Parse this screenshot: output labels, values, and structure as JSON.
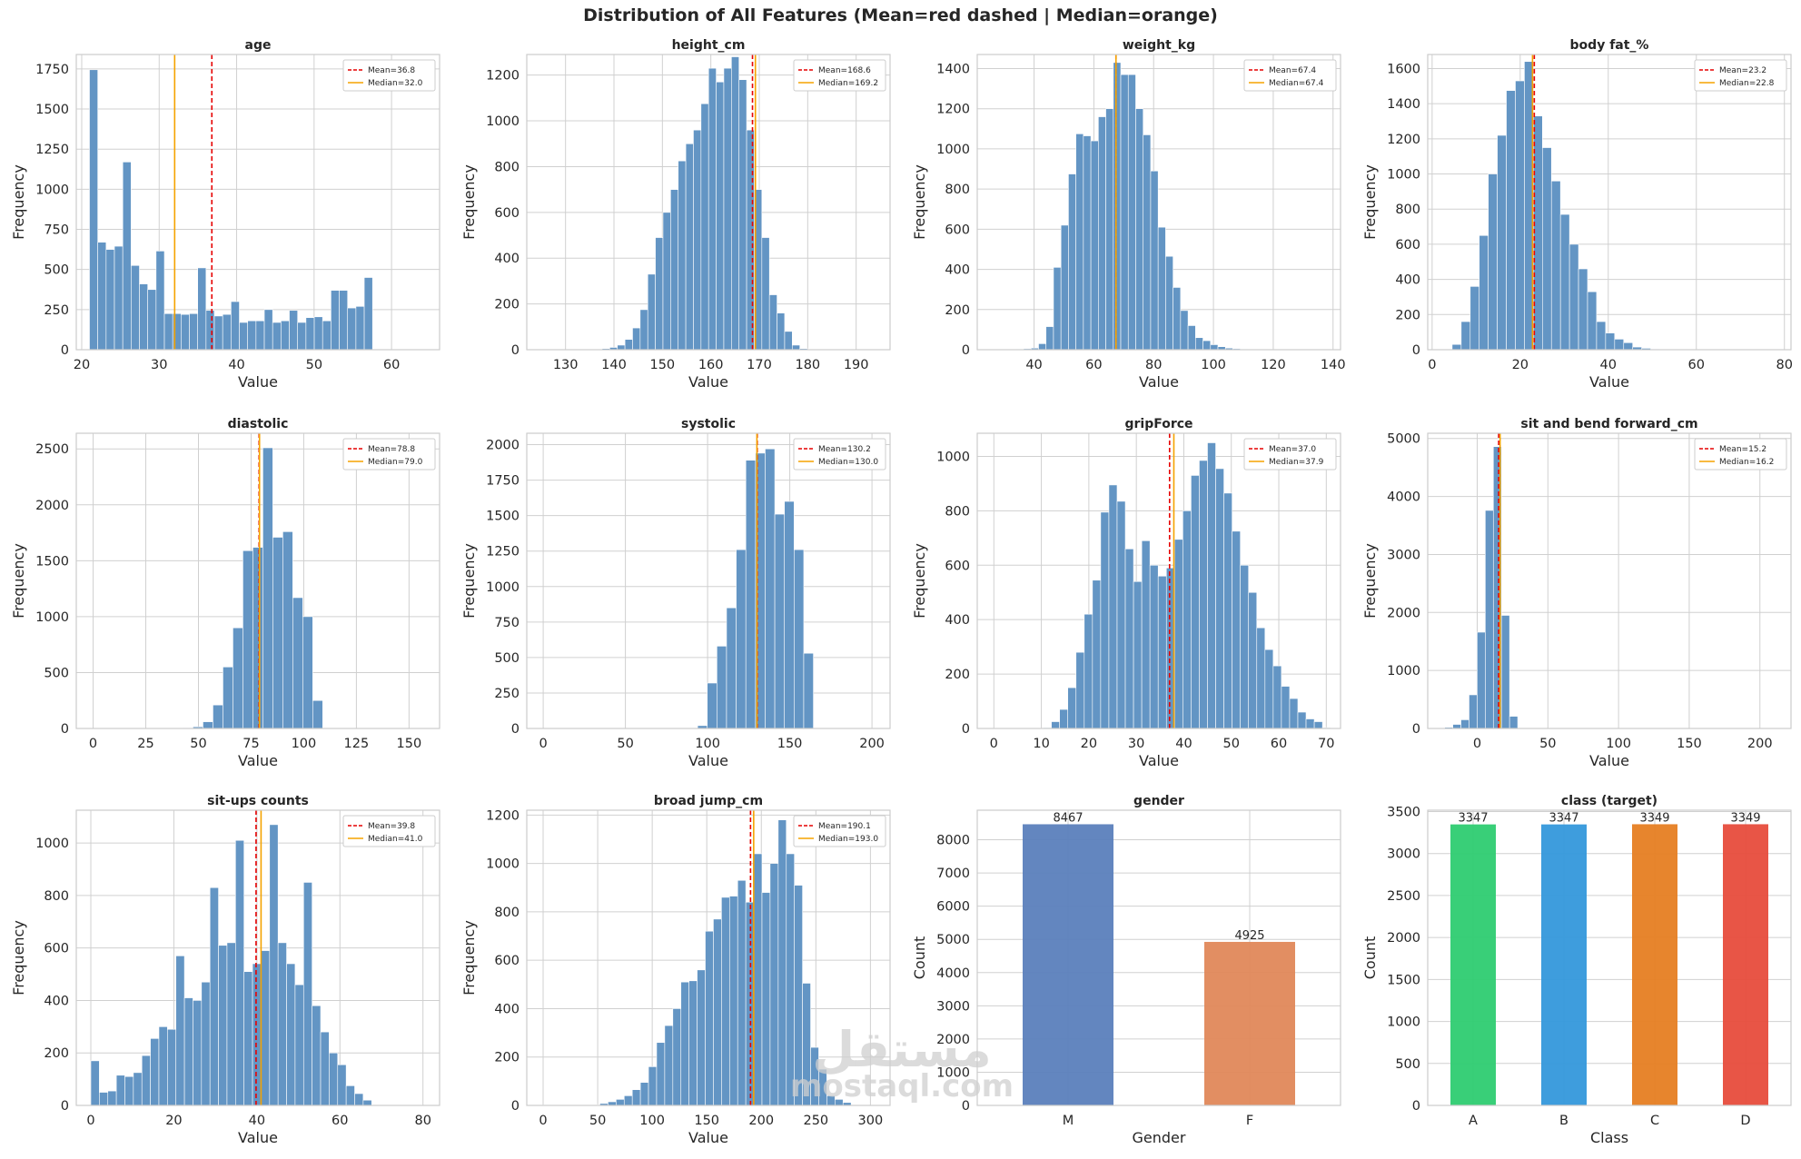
{
  "figure": {
    "title": "Distribution of All Features (Mean=red dashed | Median=orange)",
    "watermark": {
      "arabic": "مستقل",
      "latin": "mostaql.com"
    },
    "colors": {
      "hist_bar": "#6395c4",
      "hist_edge": "#ffffff",
      "mean_line": "#e60000",
      "median_line": "#f5a300",
      "grid": "#d0d0d0",
      "spine": "#cccccc",
      "gender_M": "#5b7fbc",
      "gender_F": "#e0885a",
      "class_A": "#2ecc71",
      "class_B": "#3498db",
      "class_C": "#e67e22",
      "class_D": "#e74c3c"
    }
  },
  "chart_data": [
    {
      "type": "bar",
      "title": "age",
      "xlabel": "Value",
      "ylabel": "Frequency",
      "xlim": [
        19.3,
        66.2
      ],
      "ylim": [
        0,
        1840
      ],
      "xticks": [
        20,
        30,
        40,
        50,
        60
      ],
      "yticks": [
        0,
        250,
        500,
        750,
        1000,
        1250,
        1500,
        1750
      ],
      "bin_start": 21,
      "bin_width": 1.075,
      "values": [
        1745,
        670,
        625,
        645,
        1170,
        525,
        410,
        375,
        615,
        225,
        225,
        220,
        225,
        510,
        245,
        210,
        220,
        300,
        170,
        180,
        180,
        250,
        170,
        180,
        245,
        170,
        200,
        205,
        180,
        370,
        370,
        260,
        270,
        450
      ],
      "mean": 36.8,
      "median": 32.0,
      "mean_label": "Mean=36.8",
      "median_label": "Median=32.0"
    },
    {
      "type": "bar",
      "title": "height_cm",
      "xlabel": "Value",
      "ylabel": "Frequency",
      "xlim": [
        122,
        197
      ],
      "ylim": [
        0,
        1290
      ],
      "xticks": [
        130,
        140,
        150,
        160,
        170,
        180,
        190
      ],
      "yticks": [
        0,
        200,
        400,
        600,
        800,
        1000,
        1200
      ],
      "bin_start": 125,
      "bin_width": 1.57,
      "values": [
        1,
        1,
        1,
        1,
        1,
        2,
        2,
        3,
        5,
        10,
        20,
        45,
        95,
        175,
        330,
        490,
        600,
        700,
        825,
        900,
        960,
        1075,
        1230,
        1170,
        1230,
        1280,
        1180,
        960,
        700,
        490,
        240,
        160,
        80,
        20,
        5
      ],
      "mean": 168.6,
      "median": 169.2,
      "mean_label": "Mean=168.6",
      "median_label": "Median=169.2"
    },
    {
      "type": "bar",
      "title": "weight_kg",
      "xlabel": "Value",
      "ylabel": "Frequency",
      "xlim": [
        21,
        142.5
      ],
      "ylim": [
        0,
        1470
      ],
      "xticks": [
        40,
        60,
        80,
        100,
        120,
        140
      ],
      "yticks": [
        0,
        200,
        400,
        600,
        800,
        1000,
        1200,
        1400
      ],
      "bin_start": 26.5,
      "bin_width": 2.5,
      "values": [
        1,
        1,
        2,
        3,
        5,
        8,
        30,
        115,
        410,
        620,
        875,
        1075,
        1065,
        1040,
        1160,
        1200,
        1430,
        1370,
        1370,
        1200,
        1070,
        890,
        610,
        465,
        310,
        195,
        120,
        60,
        45,
        25,
        15,
        8,
        5,
        3,
        2,
        1,
        1
      ],
      "mean": 67.4,
      "median": 67.4,
      "mean_label": "Mean=67.4",
      "median_label": "Median=67.4"
    },
    {
      "type": "bar",
      "title": "body fat_%",
      "xlabel": "Value",
      "ylabel": "Frequency",
      "xlim": [
        -1,
        81.5
      ],
      "ylim": [
        0,
        1680
      ],
      "xticks": [
        0,
        20,
        40,
        60,
        80
      ],
      "yticks": [
        0,
        200,
        400,
        600,
        800,
        1000,
        1200,
        1400,
        1600
      ],
      "bin_start": 2.5,
      "bin_width": 2.05,
      "values": [
        2,
        30,
        160,
        360,
        650,
        1000,
        1220,
        1475,
        1530,
        1640,
        1330,
        1150,
        960,
        770,
        600,
        460,
        330,
        160,
        95,
        60,
        40,
        15,
        8,
        3,
        2,
        1,
        1,
        1,
        1,
        1,
        1,
        1,
        1,
        1,
        1,
        1,
        1,
        1
      ],
      "mean": 23.2,
      "median": 22.8,
      "mean_label": "Mean=23.2",
      "median_label": "Median=22.8"
    },
    {
      "type": "bar",
      "title": "diastolic",
      "xlabel": "Value",
      "ylabel": "Frequency",
      "xlim": [
        -8,
        164.5
      ],
      "ylim": [
        0,
        2640
      ],
      "xticks": [
        0,
        25,
        50,
        75,
        100,
        125,
        150
      ],
      "yticks": [
        0,
        500,
        1000,
        1500,
        2000,
        2500
      ],
      "bin_start": 0,
      "bin_width": 4.74,
      "values": [
        1,
        1,
        1,
        1,
        1,
        1,
        1,
        1,
        1,
        5,
        15,
        60,
        210,
        550,
        900,
        1590,
        1620,
        2510,
        1710,
        1760,
        1170,
        1000,
        250,
        2,
        2,
        1,
        1,
        1,
        1,
        1,
        1,
        1,
        1
      ],
      "mean": 78.8,
      "median": 79.0,
      "mean_label": "Mean=78.8",
      "median_label": "Median=79.0"
    },
    {
      "type": "bar",
      "title": "systolic",
      "xlabel": "Value",
      "ylabel": "Frequency",
      "xlim": [
        -10,
        211
      ],
      "ylim": [
        0,
        2080
      ],
      "xticks": [
        0,
        50,
        100,
        150,
        200
      ],
      "yticks": [
        0,
        250,
        500,
        750,
        1000,
        1250,
        1500,
        1750,
        2000
      ],
      "bin_start": 0,
      "bin_width": 5.87,
      "values": [
        1,
        1,
        1,
        1,
        1,
        1,
        1,
        1,
        1,
        1,
        1,
        1,
        1,
        1,
        1,
        2,
        20,
        320,
        580,
        850,
        1260,
        1890,
        1940,
        1970,
        1510,
        1600,
        1260,
        530,
        1,
        1,
        1,
        1,
        1,
        1
      ],
      "mean": 130.2,
      "median": 130.0,
      "mean_label": "Mean=130.2",
      "median_label": "Median=130.0"
    },
    {
      "type": "bar",
      "title": "gripForce",
      "xlabel": "Value",
      "ylabel": "Frequency",
      "xlim": [
        -3.5,
        73
      ],
      "ylim": [
        0,
        1085
      ],
      "xticks": [
        0,
        10,
        20,
        30,
        40,
        50,
        60,
        70
      ],
      "yticks": [
        0,
        200,
        400,
        600,
        800,
        1000
      ],
      "bin_start": 0,
      "bin_width": 1.73,
      "values": [
        1,
        1,
        1,
        1,
        1,
        1,
        3,
        25,
        70,
        150,
        280,
        420,
        545,
        795,
        895,
        835,
        660,
        540,
        690,
        600,
        560,
        590,
        695,
        800,
        930,
        985,
        1050,
        955,
        865,
        725,
        600,
        500,
        370,
        290,
        230,
        155,
        110,
        60,
        35,
        25,
        3
      ],
      "mean": 37.0,
      "median": 37.9,
      "mean_label": "Mean=37.0",
      "median_label": "Median=37.9"
    },
    {
      "type": "bar",
      "title": "sit and bend forward_cm",
      "xlabel": "Value",
      "ylabel": "Frequency",
      "xlim": [
        -35,
        222
      ],
      "ylim": [
        0,
        5090
      ],
      "xticks": [
        0,
        50,
        100,
        150,
        200
      ],
      "yticks": [
        0,
        1000,
        2000,
        3000,
        4000,
        5000
      ],
      "bin_start": -23,
      "bin_width": 5.74,
      "values": [
        20,
        70,
        150,
        580,
        1660,
        3760,
        4860,
        1950,
        210,
        1,
        1,
        1,
        1,
        1,
        1,
        1,
        1,
        1,
        1,
        1,
        1,
        1,
        1,
        1,
        1,
        1,
        1,
        1,
        1,
        1,
        1,
        1,
        1,
        1,
        1,
        1,
        1,
        1,
        1,
        1,
        1
      ],
      "mean": 15.2,
      "median": 16.2,
      "mean_label": "Mean=15.2",
      "median_label": "Median=16.2"
    },
    {
      "type": "bar",
      "title": "sit-ups counts",
      "xlabel": "Value",
      "ylabel": "Frequency",
      "xlim": [
        -3.5,
        84
      ],
      "ylim": [
        0,
        1125
      ],
      "xticks": [
        0,
        20,
        40,
        60,
        80
      ],
      "yticks": [
        0,
        200,
        400,
        600,
        800,
        1000
      ],
      "bin_start": 0,
      "bin_width": 2.05,
      "values": [
        170,
        50,
        55,
        115,
        110,
        125,
        190,
        255,
        300,
        290,
        570,
        410,
        400,
        470,
        830,
        610,
        620,
        1010,
        510,
        540,
        590,
        1070,
        620,
        540,
        460,
        850,
        380,
        280,
        200,
        155,
        75,
        45,
        20,
        1,
        1,
        1,
        1,
        1,
        1
      ],
      "mean": 39.8,
      "median": 41.0,
      "mean_label": "Mean=39.8",
      "median_label": "Median=41.0"
    },
    {
      "type": "bar",
      "title": "broad jump_cm",
      "xlabel": "Value",
      "ylabel": "Frequency",
      "xlim": [
        -15,
        318
      ],
      "ylim": [
        0,
        1220
      ],
      "xticks": [
        0,
        50,
        100,
        150,
        200,
        250,
        300
      ],
      "yticks": [
        0,
        200,
        400,
        600,
        800,
        1000,
        1200
      ],
      "bin_start": 0,
      "bin_width": 7.43,
      "values": [
        2,
        1,
        1,
        1,
        1,
        3,
        3,
        8,
        15,
        25,
        40,
        65,
        95,
        160,
        260,
        330,
        400,
        510,
        515,
        560,
        720,
        770,
        860,
        865,
        930,
        840,
        1040,
        880,
        1000,
        1180,
        1040,
        910,
        505,
        240,
        150,
        40,
        25,
        12,
        3,
        3
      ],
      "mean": 190.1,
      "median": 193.0,
      "mean_label": "Mean=190.1",
      "median_label": "Median=193.0"
    },
    {
      "type": "bar",
      "title": "gender",
      "xlabel": "Gender",
      "ylabel": "Count",
      "categories": [
        "M",
        "F"
      ],
      "values": [
        8467,
        4925
      ],
      "ylim": [
        0,
        8890
      ],
      "yticks": [
        0,
        1000,
        2000,
        3000,
        4000,
        5000,
        6000,
        7000,
        8000
      ],
      "value_labels": [
        "8467",
        "4925"
      ]
    },
    {
      "type": "bar",
      "title": "class (target)",
      "xlabel": "Class",
      "ylabel": "Count",
      "categories": [
        "A",
        "B",
        "C",
        "D"
      ],
      "values": [
        3347,
        3347,
        3349,
        3349
      ],
      "ylim": [
        0,
        3516
      ],
      "yticks": [
        0,
        500,
        1000,
        1500,
        2000,
        2500,
        3000,
        3500
      ],
      "value_labels": [
        "3347",
        "3347",
        "3349",
        "3349"
      ]
    }
  ]
}
